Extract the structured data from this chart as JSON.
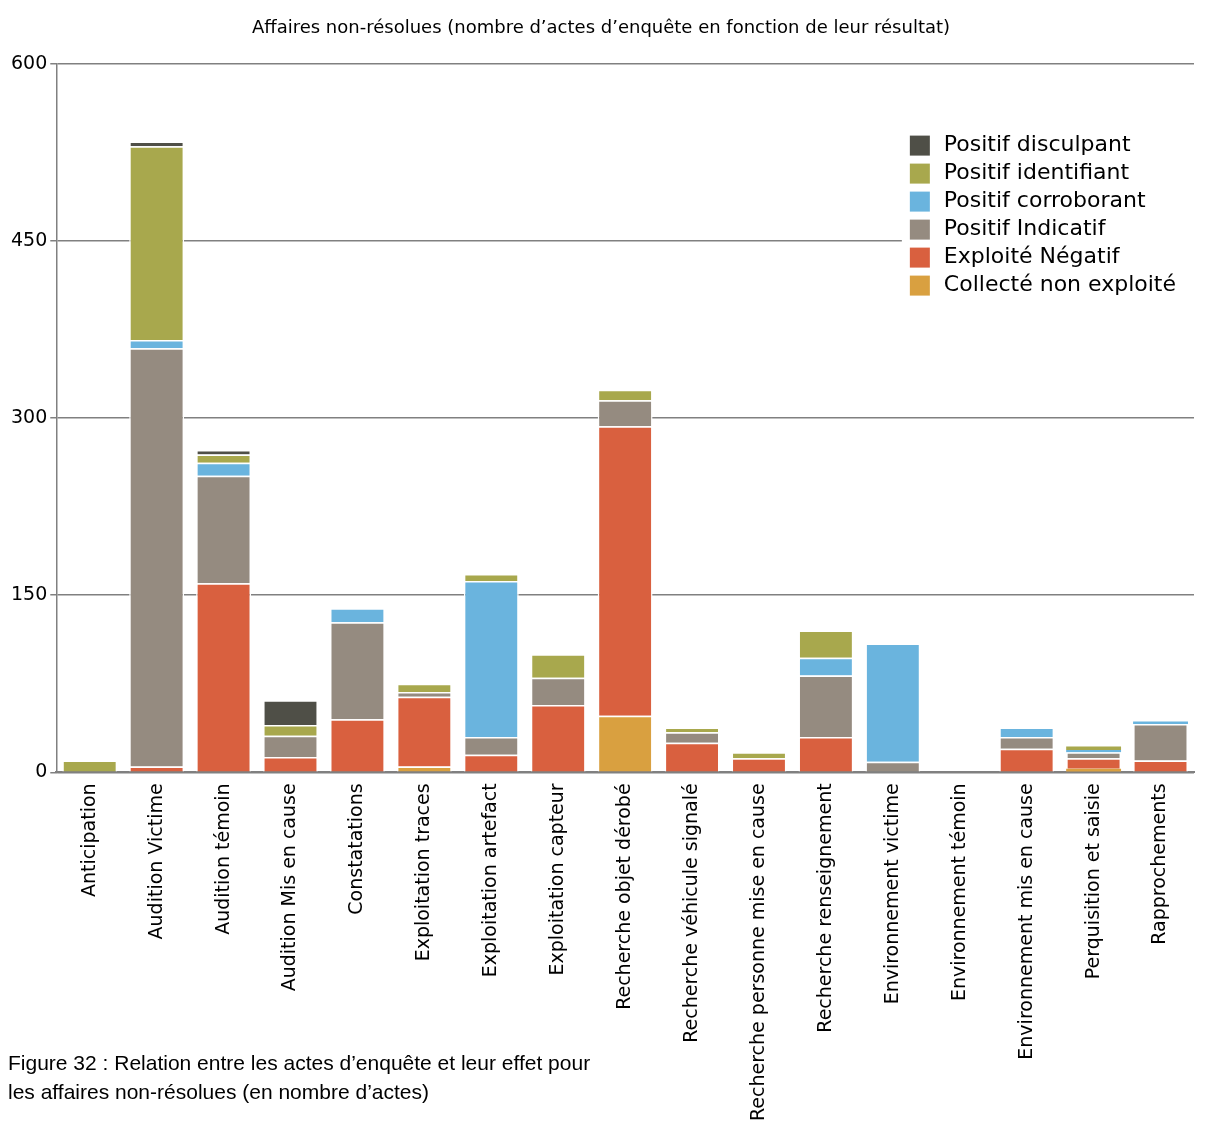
{
  "chart_data": {
    "type": "bar",
    "title": "Affaires non-résolues (nombre d’actes d’enquête en fonction de leur résultat)",
    "categories": [
      "Anticipation",
      "Audition Victime",
      "Audition témoin",
      "Audition Mis en cause",
      "Constatations",
      "Exploitation traces",
      "Exploitation artefact",
      "Exploitation capteur",
      "Recherche objet dérobé",
      "Recherche véhicule signalé",
      "Recherche personne mise en cause",
      "Recherche renseignement",
      "Environnement victime",
      "Environnement témoin",
      "Environnement mis en cause",
      "Perquisition et saisie",
      "Rapprochements"
    ],
    "stacked": true,
    "series": [
      {
        "name": "Collecté non exploité",
        "color": "#d9a040",
        "values": [
          0,
          0,
          0,
          0,
          0,
          5,
          0,
          0,
          48,
          0,
          0,
          0,
          0,
          0,
          0,
          3,
          0
        ]
      },
      {
        "name": "Exploité Négatif",
        "color": "#d9603f",
        "values": [
          0,
          5,
          160,
          13,
          45,
          59,
          15,
          57,
          245,
          25,
          12,
          30,
          0,
          0,
          20,
          9,
          10
        ]
      },
      {
        "name": "Positif Indicatif",
        "color": "#958b80",
        "values": [
          0,
          354,
          91,
          18,
          82,
          4,
          15,
          23,
          22,
          9,
          0,
          52,
          9,
          0,
          10,
          5,
          31
        ]
      },
      {
        "name": "Positif corroborant",
        "color": "#6ab4de",
        "values": [
          0,
          7,
          11,
          0,
          12,
          0,
          132,
          0,
          0,
          0,
          0,
          15,
          100,
          0,
          8,
          2,
          2
        ]
      },
      {
        "name": "Positif identifiant",
        "color": "#a8a84d",
        "values": [
          10,
          164,
          7,
          9,
          0,
          7,
          6,
          20,
          9,
          4,
          5,
          23,
          0,
          0,
          0,
          3,
          0
        ]
      },
      {
        "name": "Positif disculpant",
        "color": "#4f4f47",
        "values": [
          0,
          4,
          4,
          21,
          0,
          0,
          0,
          0,
          0,
          0,
          0,
          0,
          0,
          0,
          0,
          0,
          0
        ]
      }
    ],
    "ylim": [
      0,
      600
    ],
    "yticks": [
      0,
      150,
      300,
      450,
      600
    ],
    "grid": "y",
    "legend": "top right",
    "annotations": [
      "Figure 32 : Relation entre les actes d’enquête et leur effet pour les affaires non-résolues (en nombre d’actes)"
    ]
  }
}
